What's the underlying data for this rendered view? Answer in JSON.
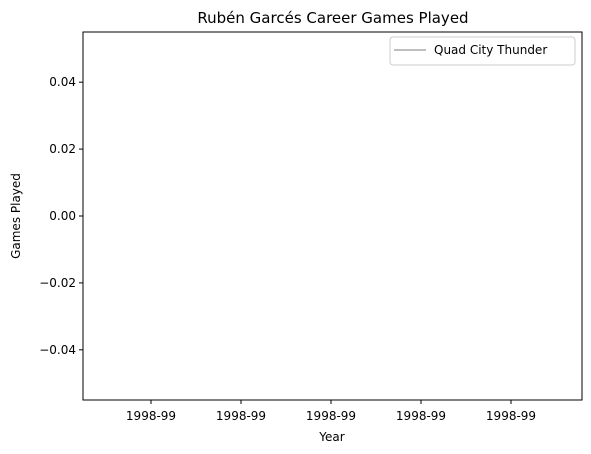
{
  "chart_data": {
    "type": "line",
    "title": "Rubén Garcés Career Games Played",
    "xlabel": "Year",
    "ylabel": "Games Played",
    "x_tick_labels": [
      "1998-99",
      "1998-99",
      "1998-99",
      "1998-99",
      "1998-99"
    ],
    "y_tick_labels": [
      "0.04",
      "0.02",
      "0.00",
      "−0.02",
      "−0.04"
    ],
    "y_ticks": [
      0.04,
      0.02,
      0.0,
      -0.02,
      -0.04
    ],
    "ylim": [
      -0.055,
      0.055
    ],
    "grid": false,
    "legend_position": "top-right",
    "series": [
      {
        "name": "Quad City Thunder",
        "color": "#bfbfbf",
        "x": [
          "1998-99",
          "1998-99",
          "1998-99",
          "1998-99",
          "1998-99"
        ],
        "values": [
          0,
          0,
          0,
          0,
          0
        ]
      }
    ]
  }
}
